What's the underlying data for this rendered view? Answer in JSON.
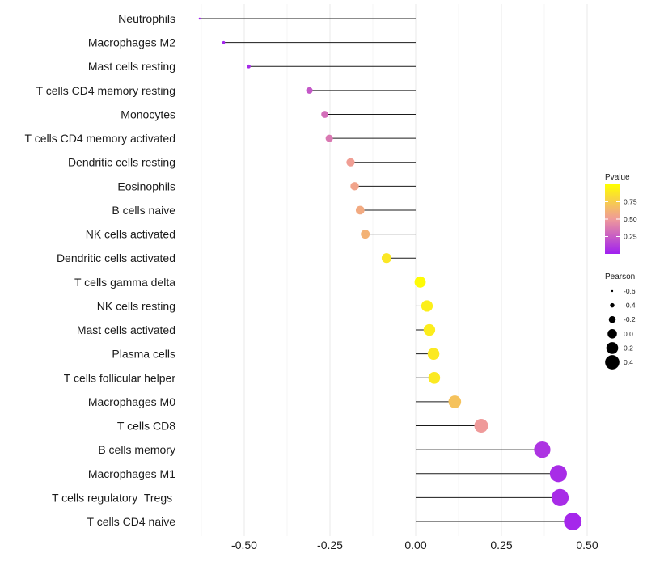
{
  "chart_data": {
    "type": "lollipop",
    "title": "",
    "xlabel": "",
    "ylabel": "",
    "xlim": [
      -0.63,
      0.55
    ],
    "x_ticks": [
      -0.5,
      -0.25,
      0.0,
      0.25,
      0.5
    ],
    "x_tick_labels": [
      "-0.50",
      "-0.25",
      "0.00",
      "0.25",
      "0.50"
    ],
    "grid": true,
    "categories": [
      "Neutrophils",
      "Macrophages M2",
      "Mast cells resting",
      "T cells CD4 memory resting",
      "Monocytes",
      "T cells CD4 memory activated",
      "Dendritic cells resting",
      "Eosinophils",
      "B cells naive",
      "NK cells activated",
      "Dendritic cells activated",
      "T cells gamma delta",
      "NK cells resting",
      "Mast cells activated",
      "Plasma cells",
      "T cells follicular helper",
      "Macrophages M0",
      "T cells CD8",
      "B cells memory",
      "Macrophages M1",
      "T cells regulatory  Tregs ",
      "T cells CD4 naive"
    ],
    "pearson": [
      -0.63,
      -0.56,
      -0.487,
      -0.31,
      -0.265,
      -0.252,
      -0.19,
      -0.178,
      -0.162,
      -0.147,
      -0.085,
      0.013,
      0.033,
      0.04,
      0.052,
      0.054,
      0.114,
      0.191,
      0.369,
      0.416,
      0.421,
      0.458
    ],
    "pvalue": [
      0.0,
      0.02,
      0.04,
      0.23,
      0.32,
      0.36,
      0.52,
      0.55,
      0.58,
      0.62,
      0.88,
      0.98,
      0.92,
      0.91,
      0.89,
      0.89,
      0.7,
      0.5,
      0.08,
      0.05,
      0.05,
      0.03
    ],
    "legend_pvalue": {
      "title": "Pvalue",
      "ticks": [
        0.25,
        0.5,
        0.75
      ],
      "tick_labels": [
        "0.25",
        "0.50",
        "0.75"
      ],
      "colors": [
        "#a020f0",
        "#ef9a9a",
        "#ffff00"
      ],
      "range": [
        0.0,
        1.0
      ],
      "placement": "right"
    },
    "legend_pearson": {
      "title": "Pearson",
      "values": [
        -0.6,
        -0.4,
        -0.2,
        0.0,
        0.2,
        0.4
      ],
      "labels": [
        "-0.6",
        "-0.4",
        "-0.2",
        "0.0",
        "0.2",
        "0.4"
      ],
      "placement": "right"
    }
  }
}
